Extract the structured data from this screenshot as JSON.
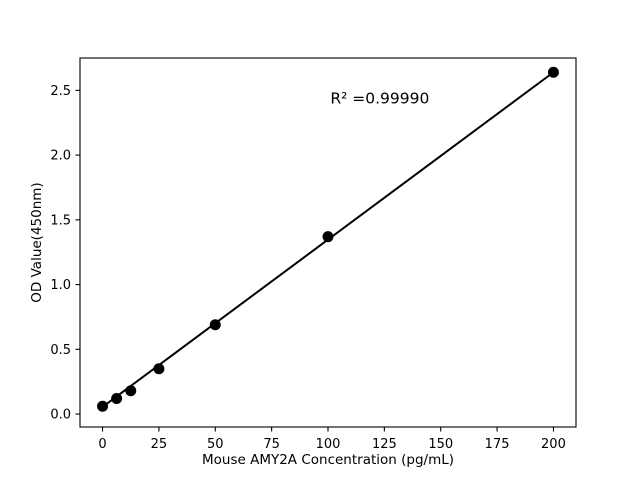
{
  "chart_data": {
    "type": "scatter",
    "title": "",
    "xlabel": "Mouse AMY2A Concentration (pg/mL)",
    "ylabel": "OD Value(450nm)",
    "x": [
      0,
      6.25,
      12.5,
      25,
      50,
      100,
      200
    ],
    "y": [
      0.06,
      0.12,
      0.18,
      0.35,
      0.69,
      1.37,
      2.64
    ],
    "fit_line": {
      "x1": 0,
      "y1": 0.055,
      "x2": 200,
      "y2": 2.64
    },
    "x_ticks": [
      0,
      25,
      50,
      75,
      100,
      125,
      150,
      175,
      200
    ],
    "y_ticks": [
      0.0,
      0.5,
      1.0,
      1.5,
      2.0,
      2.5
    ],
    "y_tick_decimals": 1,
    "xlim": [
      -10,
      210
    ],
    "ylim": [
      -0.1,
      2.75
    ],
    "annotation": {
      "text": "R² =0.99990",
      "x": 123,
      "y": 2.44
    },
    "marker_color": "#000000",
    "line_color": "#000000",
    "axis_color": "#000000",
    "background": "#ffffff",
    "grid": false,
    "legend": null
  }
}
